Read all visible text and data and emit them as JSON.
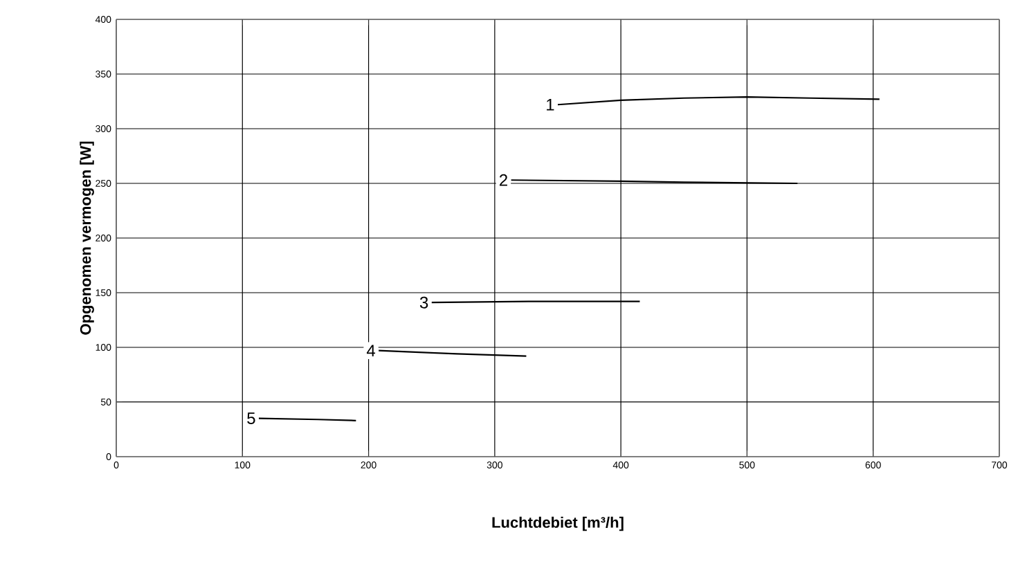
{
  "chart_data": {
    "type": "line",
    "xlabel": "Luchtdebiet [m³/h]",
    "ylabel": "Opgenomen vermogen [W]",
    "xlim": [
      0,
      700
    ],
    "xticks": [
      0,
      100,
      200,
      300,
      400,
      500,
      600,
      700
    ],
    "ylim": [
      0,
      400
    ],
    "yticks": [
      0,
      50,
      100,
      150,
      200,
      250,
      300,
      350,
      400
    ],
    "grid": true,
    "legend": false,
    "marker": "none",
    "line_style": "solid",
    "series": [
      {
        "name": "1",
        "color": "#000000",
        "x": [
          350,
          400,
          450,
          500,
          550,
          605
        ],
        "values": [
          322,
          326,
          328,
          329,
          328,
          327
        ]
      },
      {
        "name": "2",
        "color": "#000000",
        "x": [
          313,
          400,
          450,
          540
        ],
        "values": [
          253,
          252,
          251,
          250
        ]
      },
      {
        "name": "3",
        "color": "#000000",
        "x": [
          250,
          330,
          415
        ],
        "values": [
          141,
          142,
          142
        ]
      },
      {
        "name": "4",
        "color": "#000000",
        "x": [
          208,
          270,
          325
        ],
        "values": [
          97,
          94,
          92
        ]
      },
      {
        "name": "5",
        "color": "#000000",
        "x": [
          113,
          160,
          190
        ],
        "values": [
          35,
          34,
          33
        ]
      }
    ]
  }
}
